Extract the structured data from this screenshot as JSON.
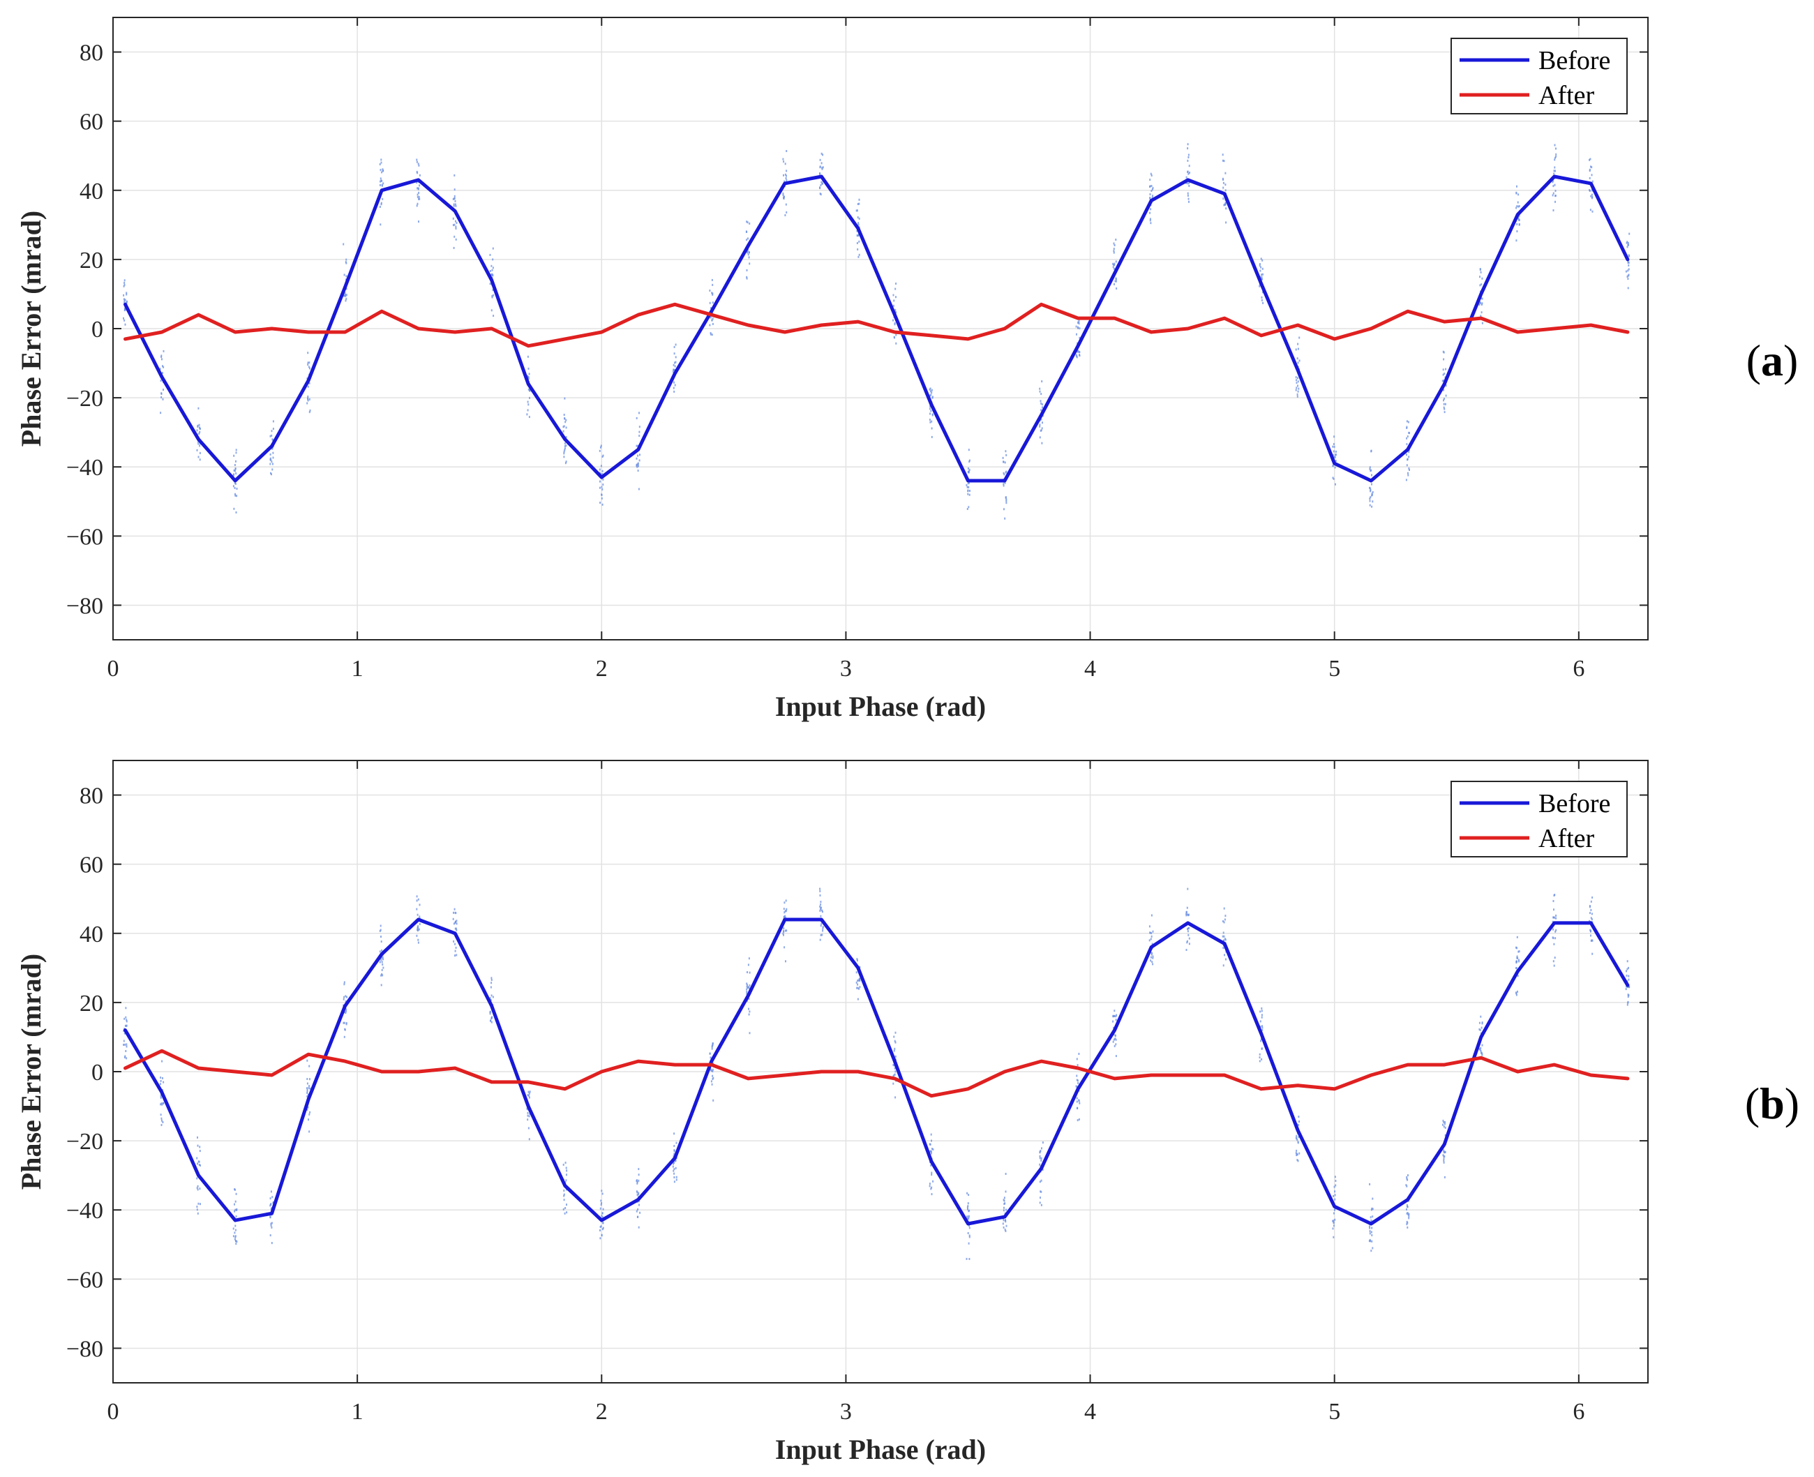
{
  "chart_data": [
    {
      "type": "line",
      "panel_label": "a",
      "title": "",
      "xlabel": "Input Phase (rad)",
      "ylabel": "Phase Error (mrad)",
      "xlim": [
        0,
        6.2832
      ],
      "ylim": [
        -90,
        90
      ],
      "xticks": [
        0,
        1,
        2,
        3,
        4,
        5,
        6
      ],
      "yticks": [
        80,
        60,
        40,
        20,
        0,
        -20,
        -40,
        -60,
        -80
      ],
      "ytick_labels": [
        "80",
        "60",
        "40",
        "20",
        "0",
        "−20",
        "−40",
        "−60",
        "−80"
      ],
      "grid": true,
      "legend_position": "top-right",
      "x": [
        0.05,
        0.2,
        0.35,
        0.5,
        0.65,
        0.8,
        0.95,
        1.1,
        1.25,
        1.4,
        1.55,
        1.7,
        1.85,
        2.0,
        2.15,
        2.3,
        2.45,
        2.6,
        2.75,
        2.9,
        3.05,
        3.2,
        3.35,
        3.5,
        3.65,
        3.8,
        3.95,
        4.1,
        4.25,
        4.4,
        4.55,
        4.7,
        4.85,
        5.0,
        5.15,
        5.3,
        5.45,
        5.6,
        5.75,
        5.9,
        6.05,
        6.2
      ],
      "series": [
        {
          "name": "Before",
          "color": "#1818d8",
          "values": [
            7,
            -14,
            -32,
            -44,
            -34,
            -15,
            12,
            40,
            43,
            34,
            14,
            -16,
            -32,
            -43,
            -35,
            -13,
            5,
            24,
            42,
            44,
            29,
            4,
            -22,
            -44,
            -44,
            -25,
            -5,
            16,
            37,
            43,
            39,
            13,
            -12,
            -39,
            -44,
            -35,
            -16,
            10,
            33,
            44,
            42,
            20
          ]
        },
        {
          "name": "After",
          "color": "#e02020",
          "values": [
            -3,
            -1,
            4,
            -1,
            0,
            -1,
            -1,
            5,
            0,
            -1,
            0,
            -5,
            -3,
            -1,
            4,
            7,
            4,
            1,
            -1,
            1,
            2,
            -1,
            -2,
            -3,
            0,
            7,
            3,
            3,
            -1,
            0,
            3,
            -2,
            1,
            -3,
            0,
            5,
            2,
            3,
            -1,
            0,
            1,
            -1
          ]
        }
      ]
    },
    {
      "type": "line",
      "panel_label": "b",
      "title": "",
      "xlabel": "Input Phase (rad)",
      "ylabel": "Phase Error (mrad)",
      "xlim": [
        0,
        6.2832
      ],
      "ylim": [
        -90,
        90
      ],
      "xticks": [
        0,
        1,
        2,
        3,
        4,
        5,
        6
      ],
      "yticks": [
        80,
        60,
        40,
        20,
        0,
        -20,
        -40,
        -60,
        -80
      ],
      "ytick_labels": [
        "80",
        "60",
        "40",
        "20",
        "0",
        "−20",
        "−40",
        "−60",
        "−80"
      ],
      "grid": true,
      "legend_position": "top-right",
      "x": [
        0.05,
        0.2,
        0.35,
        0.5,
        0.65,
        0.8,
        0.95,
        1.1,
        1.25,
        1.4,
        1.55,
        1.7,
        1.85,
        2.0,
        2.15,
        2.3,
        2.45,
        2.6,
        2.75,
        2.9,
        3.05,
        3.2,
        3.35,
        3.5,
        3.65,
        3.8,
        3.95,
        4.1,
        4.25,
        4.4,
        4.55,
        4.7,
        4.85,
        5.0,
        5.15,
        5.3,
        5.45,
        5.6,
        5.75,
        5.9,
        6.05,
        6.2
      ],
      "series": [
        {
          "name": "Before",
          "color": "#1818d8",
          "values": [
            12,
            -6,
            -30,
            -43,
            -41,
            -8,
            19,
            34,
            44,
            40,
            19,
            -10,
            -33,
            -43,
            -37,
            -25,
            3,
            22,
            44,
            44,
            30,
            3,
            -26,
            -44,
            -42,
            -28,
            -5,
            12,
            36,
            43,
            37,
            11,
            -17,
            -39,
            -44,
            -37,
            -21,
            10,
            29,
            43,
            43,
            25
          ]
        },
        {
          "name": "After",
          "color": "#e02020",
          "values": [
            1,
            6,
            1,
            0,
            -1,
            5,
            3,
            0,
            0,
            1,
            -3,
            -3,
            -5,
            0,
            3,
            2,
            2,
            -2,
            -1,
            0,
            0,
            -2,
            -7,
            -5,
            0,
            3,
            1,
            -2,
            -1,
            -1,
            -1,
            -5,
            -4,
            -5,
            -1,
            2,
            2,
            4,
            0,
            2,
            -1,
            -2
          ]
        }
      ]
    }
  ],
  "noise": {
    "color": "#6a8ee0"
  }
}
